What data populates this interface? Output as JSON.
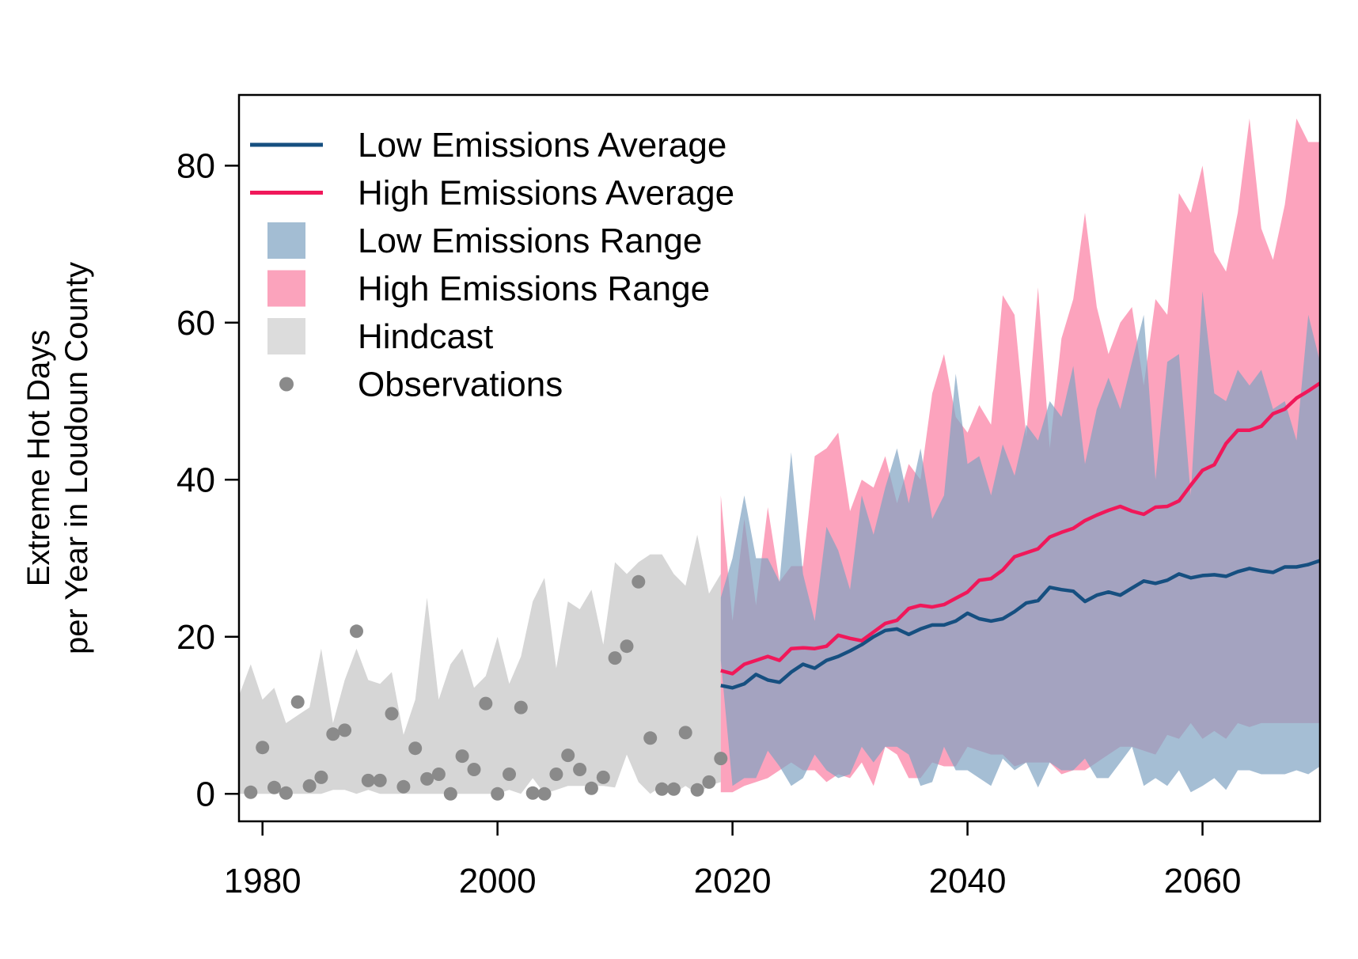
{
  "chart_data": {
    "type": "line",
    "title": "",
    "xlabel": "",
    "ylabel_lines": [
      "Extreme Hot Days",
      "per Year in Loudoun County"
    ],
    "xlim": [
      1978,
      2070
    ],
    "ylim": [
      -3.5,
      89
    ],
    "x_ticks": [
      1980,
      2000,
      2020,
      2040,
      2060
    ],
    "y_ticks": [
      0,
      20,
      40,
      60,
      80
    ],
    "grid": false,
    "legend_position": "top-left",
    "colors": {
      "low_line": "#164f80",
      "high_line": "#f0185a",
      "low_range": "#7fa3c2",
      "high_range": "#fb7199",
      "hindcast": "#d6d6d6",
      "observations": "#8a8a8a"
    },
    "legend": [
      {
        "label": "Low Emissions Average",
        "kind": "line",
        "color": "#164f80"
      },
      {
        "label": "High Emissions Average",
        "kind": "line",
        "color": "#f0185a"
      },
      {
        "label": "Low Emissions Range",
        "kind": "box",
        "color": "#a3bdd3"
      },
      {
        "label": "High Emissions Range",
        "kind": "box",
        "color": "#fba3bc"
      },
      {
        "label": "Hindcast",
        "kind": "box",
        "color": "#dcdcdc"
      },
      {
        "label": "Observations",
        "kind": "point",
        "color": "#8a8a8a"
      }
    ],
    "hindcast": {
      "name": "Hindcast",
      "x": [
        1978,
        1979,
        1980,
        1981,
        1982,
        1983,
        1984,
        1985,
        1986,
        1987,
        1988,
        1989,
        1990,
        1991,
        1992,
        1993,
        1994,
        1995,
        1996,
        1997,
        1998,
        1999,
        2000,
        2001,
        2002,
        2003,
        2004,
        2005,
        2006,
        2007,
        2008,
        2009,
        2010,
        2011,
        2012,
        2013,
        2014,
        2015,
        2016,
        2017,
        2018,
        2019
      ],
      "upper": [
        12.5,
        16.5,
        12,
        13.5,
        9,
        10,
        11,
        18.5,
        9,
        14.5,
        18.5,
        14.5,
        14,
        15.5,
        7.5,
        12,
        25,
        12,
        16.5,
        18.5,
        13.5,
        15,
        20,
        14,
        17.5,
        24.5,
        27.5,
        16,
        24.5,
        23.5,
        26,
        19,
        29.5,
        28,
        29.5,
        30.5,
        30.5,
        28,
        26.5,
        33,
        25.5,
        28
      ],
      "lower": [
        0,
        0,
        0,
        0,
        0,
        0,
        0,
        0,
        0.5,
        0.5,
        0,
        0.5,
        0,
        0,
        0,
        0,
        0,
        0,
        0,
        0,
        0,
        0,
        0,
        0.5,
        0,
        2,
        0,
        0.5,
        1,
        1,
        1,
        1,
        0.8,
        5,
        1.5,
        0,
        1,
        0,
        1,
        0,
        1,
        1.5
      ]
    },
    "high_range": {
      "name": "High Emissions Range",
      "x": [
        2019,
        2020,
        2021,
        2022,
        2023,
        2024,
        2025,
        2026,
        2027,
        2028,
        2029,
        2030,
        2031,
        2032,
        2033,
        2034,
        2035,
        2036,
        2037,
        2038,
        2039,
        2040,
        2041,
        2042,
        2043,
        2044,
        2045,
        2046,
        2047,
        2048,
        2049,
        2050,
        2051,
        2052,
        2053,
        2054,
        2055,
        2056,
        2057,
        2058,
        2059,
        2060,
        2061,
        2062,
        2063,
        2064,
        2065,
        2066,
        2067,
        2068,
        2069,
        2070
      ],
      "upper": [
        38,
        22,
        35,
        24,
        36.5,
        27,
        29,
        29,
        43,
        44,
        46,
        36,
        40,
        39,
        43,
        37,
        42,
        40,
        51,
        56,
        48,
        46,
        49.5,
        47,
        63.5,
        61,
        45.5,
        64.5,
        44,
        58,
        63,
        74,
        62,
        56,
        60,
        62,
        52,
        63,
        61,
        76.5,
        74,
        80,
        69,
        66.5,
        74,
        86,
        72,
        68,
        75,
        86,
        83,
        83
      ],
      "lower": [
        0.2,
        0.2,
        1,
        1.5,
        2,
        3,
        4,
        3,
        3,
        1.5,
        2.5,
        2,
        4,
        1,
        6,
        5,
        2,
        2,
        4,
        3.5,
        3.5,
        6,
        5.5,
        5,
        5,
        3.5,
        4,
        4,
        4,
        2.5,
        3,
        3,
        4,
        5,
        6,
        6,
        5.5,
        5,
        7.5,
        7,
        9,
        7,
        8,
        7,
        9,
        8.5,
        9,
        9,
        9,
        9,
        9,
        9
      ]
    },
    "low_range": {
      "name": "Low Emissions Range",
      "x": [
        2019,
        2020,
        2021,
        2022,
        2023,
        2024,
        2025,
        2026,
        2027,
        2028,
        2029,
        2030,
        2031,
        2032,
        2033,
        2034,
        2035,
        2036,
        2037,
        2038,
        2039,
        2040,
        2041,
        2042,
        2043,
        2044,
        2045,
        2046,
        2047,
        2048,
        2049,
        2050,
        2051,
        2052,
        2053,
        2054,
        2055,
        2056,
        2057,
        2058,
        2059,
        2060,
        2061,
        2062,
        2063,
        2064,
        2065,
        2066,
        2067,
        2068,
        2069,
        2070
      ],
      "upper": [
        25,
        30,
        38,
        30,
        30,
        27,
        43.5,
        28,
        22,
        34,
        31,
        26,
        38,
        33,
        39,
        44,
        37,
        44,
        35,
        38,
        53.5,
        42,
        43,
        38,
        44.5,
        40.5,
        47,
        45,
        50,
        48,
        54.5,
        42,
        49,
        53,
        49,
        55,
        61,
        40,
        55,
        56,
        38,
        64,
        51,
        50,
        54,
        52,
        54,
        49,
        50,
        45,
        61,
        55
      ],
      "lower": [
        17,
        1,
        2,
        2,
        5.5,
        3.5,
        1,
        2,
        5,
        3,
        2,
        2.5,
        6,
        4,
        6,
        6,
        5,
        1,
        1.5,
        6,
        3,
        3,
        2,
        1,
        4.5,
        3,
        4,
        0.8,
        4,
        3,
        3,
        4.5,
        2,
        2,
        4,
        6,
        1,
        2,
        1,
        3,
        0.2,
        1,
        2,
        0.5,
        3,
        3,
        2.5,
        2.5,
        2.5,
        3,
        2.5,
        3.5
      ]
    },
    "low_avg": {
      "name": "Low Emissions Average",
      "x": [
        2019,
        2020,
        2021,
        2022,
        2023,
        2024,
        2025,
        2026,
        2027,
        2028,
        2029,
        2030,
        2031,
        2032,
        2033,
        2034,
        2035,
        2036,
        2037,
        2038,
        2039,
        2040,
        2041,
        2042,
        2043,
        2044,
        2045,
        2046,
        2047,
        2048,
        2049,
        2050,
        2051,
        2052,
        2053,
        2054,
        2055,
        2056,
        2057,
        2058,
        2059,
        2060,
        2061,
        2062,
        2063,
        2064,
        2065,
        2066,
        2067,
        2068,
        2069,
        2070
      ],
      "values": [
        13.8,
        13.5,
        14,
        15.2,
        14.5,
        14.2,
        15.5,
        16.5,
        16,
        17,
        17.5,
        18.2,
        19,
        20,
        20.8,
        21,
        20.3,
        21,
        21.5,
        21.5,
        22,
        23,
        22.3,
        22,
        22.3,
        23.2,
        24.3,
        24.6,
        26.3,
        26,
        25.8,
        24.5,
        25.3,
        25.7,
        25.3,
        26.2,
        27.1,
        26.8,
        27.2,
        28,
        27.5,
        27.8,
        27.9,
        27.7,
        28.3,
        28.7,
        28.4,
        28.2,
        28.9,
        28.9,
        29.2,
        29.7
      ]
    },
    "high_avg": {
      "name": "High Emissions Average",
      "x": [
        2019,
        2020,
        2021,
        2022,
        2023,
        2024,
        2025,
        2026,
        2027,
        2028,
        2029,
        2030,
        2031,
        2032,
        2033,
        2034,
        2035,
        2036,
        2037,
        2038,
        2039,
        2040,
        2041,
        2042,
        2043,
        2044,
        2045,
        2046,
        2047,
        2048,
        2049,
        2050,
        2051,
        2052,
        2053,
        2054,
        2055,
        2056,
        2057,
        2058,
        2059,
        2060,
        2061,
        2062,
        2063,
        2064,
        2065,
        2066,
        2067,
        2068,
        2069,
        2070
      ],
      "values": [
        15.7,
        15.3,
        16.5,
        17,
        17.5,
        17,
        18.5,
        18.6,
        18.5,
        18.8,
        20.2,
        19.8,
        19.5,
        20.6,
        21.7,
        22.1,
        23.6,
        24,
        23.8,
        24.1,
        24.9,
        25.7,
        27.2,
        27.4,
        28.5,
        30.2,
        30.7,
        31.2,
        32.7,
        33.3,
        33.8,
        34.8,
        35.5,
        36.1,
        36.6,
        36,
        35.6,
        36.5,
        36.6,
        37.3,
        39.3,
        41.2,
        41.9,
        44.6,
        46.3,
        46.3,
        46.8,
        48.4,
        49,
        50.4,
        51.3,
        52.3
      ]
    },
    "observations": {
      "name": "Observations",
      "x": [
        1979,
        1980,
        1981,
        1982,
        1983,
        1984,
        1985,
        1986,
        1987,
        1988,
        1989,
        1990,
        1991,
        1992,
        1993,
        1994,
        1995,
        1996,
        1997,
        1998,
        1999,
        2000,
        2001,
        2002,
        2003,
        2004,
        2005,
        2006,
        2007,
        2008,
        2009,
        2010,
        2011,
        2012,
        2013,
        2014,
        2015,
        2016,
        2017,
        2018,
        2019
      ],
      "values": [
        0.2,
        5.9,
        0.8,
        0.1,
        11.7,
        1,
        2.1,
        7.6,
        8.1,
        20.7,
        1.7,
        1.7,
        10.2,
        0.9,
        5.8,
        1.9,
        2.5,
        0,
        4.8,
        3.1,
        11.5,
        0,
        2.5,
        11,
        0.1,
        0,
        2.5,
        4.9,
        3.1,
        0.7,
        2.1,
        17.3,
        18.8,
        27,
        7.1,
        0.6,
        0.6,
        7.8,
        0.5,
        1.5,
        4.5
      ]
    }
  }
}
